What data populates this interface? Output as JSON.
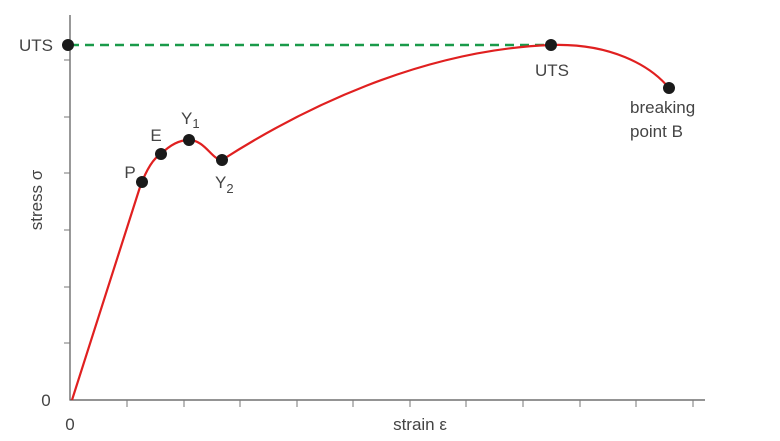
{
  "axes": {
    "y_label": "stress σ",
    "x_label": "strain ε",
    "y_origin": "0",
    "x_origin": "0",
    "y_mark": "UTS"
  },
  "points": [
    {
      "label": "P"
    },
    {
      "label": "E"
    },
    {
      "label": "Y",
      "subscript": "1"
    },
    {
      "label": "Y",
      "subscript": "2"
    },
    {
      "label": "UTS"
    },
    {
      "lines": [
        "breaking",
        "point B"
      ]
    }
  ]
}
